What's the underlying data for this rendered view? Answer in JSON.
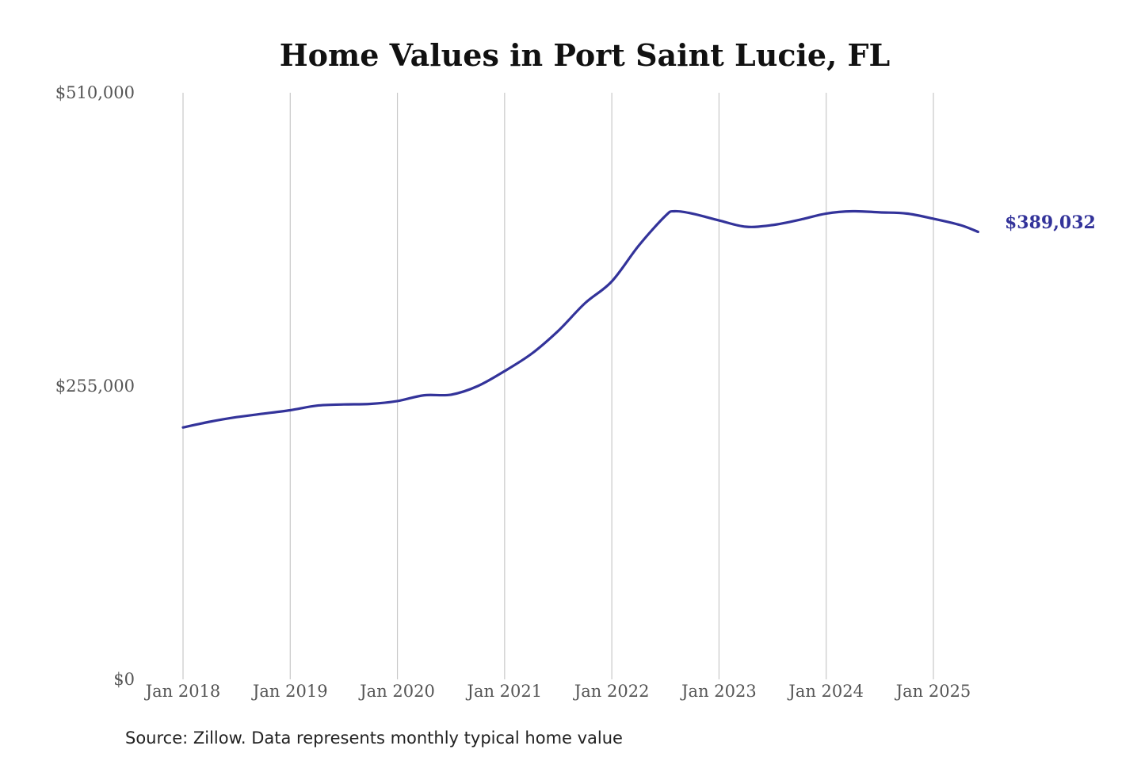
{
  "chart_data": {
    "type": "line",
    "title": "Home Values in Port Saint Lucie, FL",
    "source": "Source: Zillow. Data represents monthly typical home value",
    "ylim": [
      0,
      510000
    ],
    "y_ticks": [
      {
        "value": 0,
        "label": "$0"
      },
      {
        "value": 255000,
        "label": "$255,000"
      },
      {
        "value": 510000,
        "label": "$510,000"
      }
    ],
    "x_ticks": [
      {
        "value": "2018-01",
        "label": "Jan 2018"
      },
      {
        "value": "2019-01",
        "label": "Jan 2019"
      },
      {
        "value": "2020-01",
        "label": "Jan 2020"
      },
      {
        "value": "2021-01",
        "label": "Jan 2021"
      },
      {
        "value": "2022-01",
        "label": "Jan 2022"
      },
      {
        "value": "2023-01",
        "label": "Jan 2023"
      },
      {
        "value": "2024-01",
        "label": "Jan 2024"
      },
      {
        "value": "2025-01",
        "label": "Jan 2025"
      }
    ],
    "grid": {
      "vertical": true,
      "horizontal": false
    },
    "colors": {
      "line": "#33339a",
      "grid": "#c8c8c8"
    },
    "end_label": "$389,032",
    "series": [
      {
        "points": [
          {
            "x": "2018-01",
            "y": 219000
          },
          {
            "x": "2018-04",
            "y": 224000
          },
          {
            "x": "2018-07",
            "y": 228000
          },
          {
            "x": "2018-10",
            "y": 231000
          },
          {
            "x": "2019-01",
            "y": 234000
          },
          {
            "x": "2019-04",
            "y": 238000
          },
          {
            "x": "2019-07",
            "y": 239000
          },
          {
            "x": "2019-10",
            "y": 239500
          },
          {
            "x": "2020-01",
            "y": 242000
          },
          {
            "x": "2020-04",
            "y": 247000
          },
          {
            "x": "2020-07",
            "y": 247500
          },
          {
            "x": "2020-10",
            "y": 255000
          },
          {
            "x": "2021-01",
            "y": 268000
          },
          {
            "x": "2021-04",
            "y": 283000
          },
          {
            "x": "2021-07",
            "y": 303000
          },
          {
            "x": "2021-10",
            "y": 327000
          },
          {
            "x": "2022-01",
            "y": 346000
          },
          {
            "x": "2022-04",
            "y": 377000
          },
          {
            "x": "2022-07",
            "y": 403000
          },
          {
            "x": "2022-08",
            "y": 407000
          },
          {
            "x": "2022-10",
            "y": 405000
          },
          {
            "x": "2023-01",
            "y": 399000
          },
          {
            "x": "2023-04",
            "y": 393500
          },
          {
            "x": "2023-07",
            "y": 395000
          },
          {
            "x": "2023-10",
            "y": 399500
          },
          {
            "x": "2024-01",
            "y": 405000
          },
          {
            "x": "2024-04",
            "y": 407000
          },
          {
            "x": "2024-07",
            "y": 406000
          },
          {
            "x": "2024-10",
            "y": 405000
          },
          {
            "x": "2025-01",
            "y": 400500
          },
          {
            "x": "2025-04",
            "y": 395000
          },
          {
            "x": "2025-06",
            "y": 389032
          }
        ]
      }
    ]
  }
}
